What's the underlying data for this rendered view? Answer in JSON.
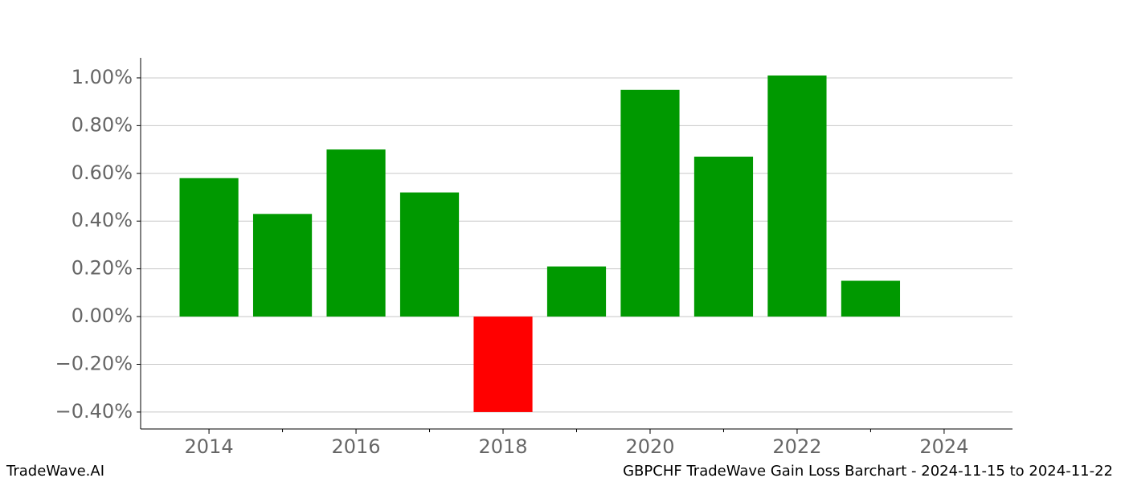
{
  "chart_data": {
    "type": "bar",
    "title": "GBPCHF TradeWave Gain Loss Barchart - 2024-11-15 to 2024-11-22",
    "source": "TradeWave.AI",
    "x": [
      2014,
      2015,
      2016,
      2017,
      2018,
      2019,
      2020,
      2021,
      2022,
      2023
    ],
    "values": [
      0.58,
      0.43,
      0.7,
      0.52,
      -0.4,
      0.21,
      0.95,
      0.67,
      1.01,
      0.15
    ],
    "colors": [
      "#009900",
      "#009900",
      "#009900",
      "#009900",
      "#ff0000",
      "#009900",
      "#009900",
      "#009900",
      "#009900",
      "#009900"
    ],
    "xlim": [
      2013.07,
      2024.93
    ],
    "xticks": [
      2014,
      2016,
      2018,
      2020,
      2022,
      2024
    ],
    "xminorticks": [
      2015,
      2017,
      2019,
      2021,
      2023
    ],
    "ylim": [
      -0.471,
      1.084
    ],
    "yticks": [
      {
        "value": -0.4,
        "label": "−0.40%"
      },
      {
        "value": -0.2,
        "label": "−0.20%"
      },
      {
        "value": 0,
        "label": "0.00%"
      },
      {
        "value": 0.2,
        "label": "0.20%"
      },
      {
        "value": 0.4,
        "label": "0.40%"
      },
      {
        "value": 0.6,
        "label": "0.60%"
      },
      {
        "value": 0.8,
        "label": "0.80%"
      },
      {
        "value": 1.0,
        "label": "1.00%"
      }
    ],
    "grid": true
  }
}
